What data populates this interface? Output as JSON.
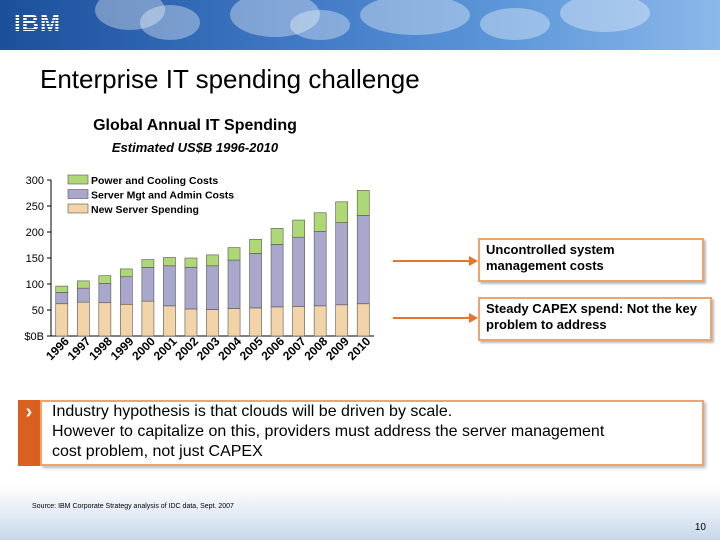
{
  "header": {
    "logo": "IBM"
  },
  "slide": {
    "title": "Enterprise IT spending challenge"
  },
  "chart_data": {
    "type": "bar",
    "stacked": true,
    "title": "Global Annual IT Spending",
    "subtitle": "Estimated US$B 1996-2010",
    "categories": [
      "1996",
      "1997",
      "1998",
      "1999",
      "2000",
      "2001",
      "2002",
      "2003",
      "2004",
      "2005",
      "2006",
      "2007",
      "2008",
      "2009",
      "2010"
    ],
    "series": [
      {
        "name": "New Server Spending",
        "color": "#f3d3a8",
        "values": [
          62,
          65,
          64,
          61,
          67,
          58,
          52,
          51,
          53,
          54,
          56,
          57,
          58,
          60,
          62
        ]
      },
      {
        "name": "Server Mgt and Admin Costs",
        "color": "#a9a8cc",
        "values": [
          22,
          27,
          37,
          53,
          65,
          77,
          80,
          84,
          93,
          105,
          120,
          133,
          143,
          158,
          170
        ]
      },
      {
        "name": "Power and Cooling Costs",
        "color": "#aed875",
        "values": [
          12,
          14,
          15,
          15,
          15,
          16,
          18,
          21,
          24,
          27,
          31,
          33,
          36,
          40,
          48
        ]
      }
    ],
    "y_ticks": [
      "300",
      "250",
      "200",
      "150",
      "100",
      "50",
      "$0B"
    ],
    "ylim": [
      0,
      300
    ],
    "legend_position": "top-left"
  },
  "callouts": {
    "uncontrolled": "Uncontrolled system management costs",
    "steady": "Steady CAPEX spend: Not the key problem to address"
  },
  "hypothesis": {
    "bullet": "›",
    "line1": "Industry hypothesis is that clouds will be driven by scale.",
    "line2": "However to capitalize on this, providers must address the server management",
    "line3": "cost problem, not just CAPEX"
  },
  "footer": {
    "source": "Source: IBM Corporate Strategy analysis of IDC data, Sept. 2007",
    "page": "10"
  }
}
